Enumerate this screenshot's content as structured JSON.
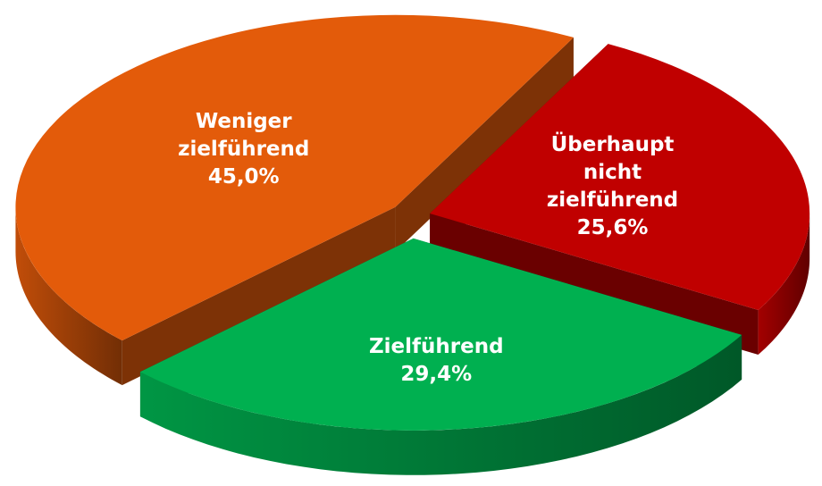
{
  "chart_data": {
    "type": "pie",
    "categories": [
      "Weniger zielführend",
      "Überhaupt nicht zielführend",
      "Zielführend"
    ],
    "values": [
      45.0,
      25.6,
      29.4
    ],
    "value_labels": [
      "45,0%",
      "25,6%",
      "29,4%"
    ],
    "colors": [
      "#e35b0a",
      "#c00000",
      "#00b050"
    ]
  }
}
